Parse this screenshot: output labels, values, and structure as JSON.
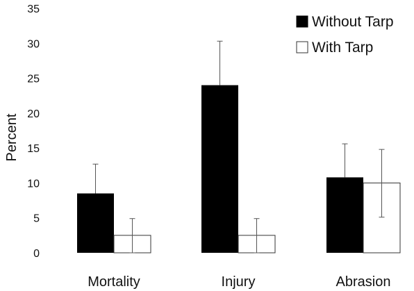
{
  "chart_data": {
    "type": "bar",
    "categories": [
      "Mortality",
      "Injury",
      "Abrasion"
    ],
    "series": [
      {
        "name": "Without Tarp",
        "color": "#000000",
        "fill": "solid",
        "values": [
          8.5,
          24.0,
          10.8
        ],
        "error_upper": [
          12.7,
          30.3,
          15.6
        ],
        "error_lower": [
          8.5,
          24.0,
          10.8
        ]
      },
      {
        "name": "With Tarp",
        "color": "#ffffff",
        "fill": "outline",
        "values": [
          2.5,
          2.5,
          10.0
        ],
        "error_upper": [
          4.9,
          4.9,
          14.8
        ],
        "error_lower": [
          0.0,
          0.0,
          5.1
        ]
      }
    ],
    "ylabel": "Percent",
    "xlabel": "",
    "ylim": [
      0,
      35
    ],
    "yticks": [
      "0",
      "5",
      "10",
      "15",
      "20",
      "25",
      "30",
      "35"
    ],
    "grid": false,
    "legend_position": "top-right"
  }
}
